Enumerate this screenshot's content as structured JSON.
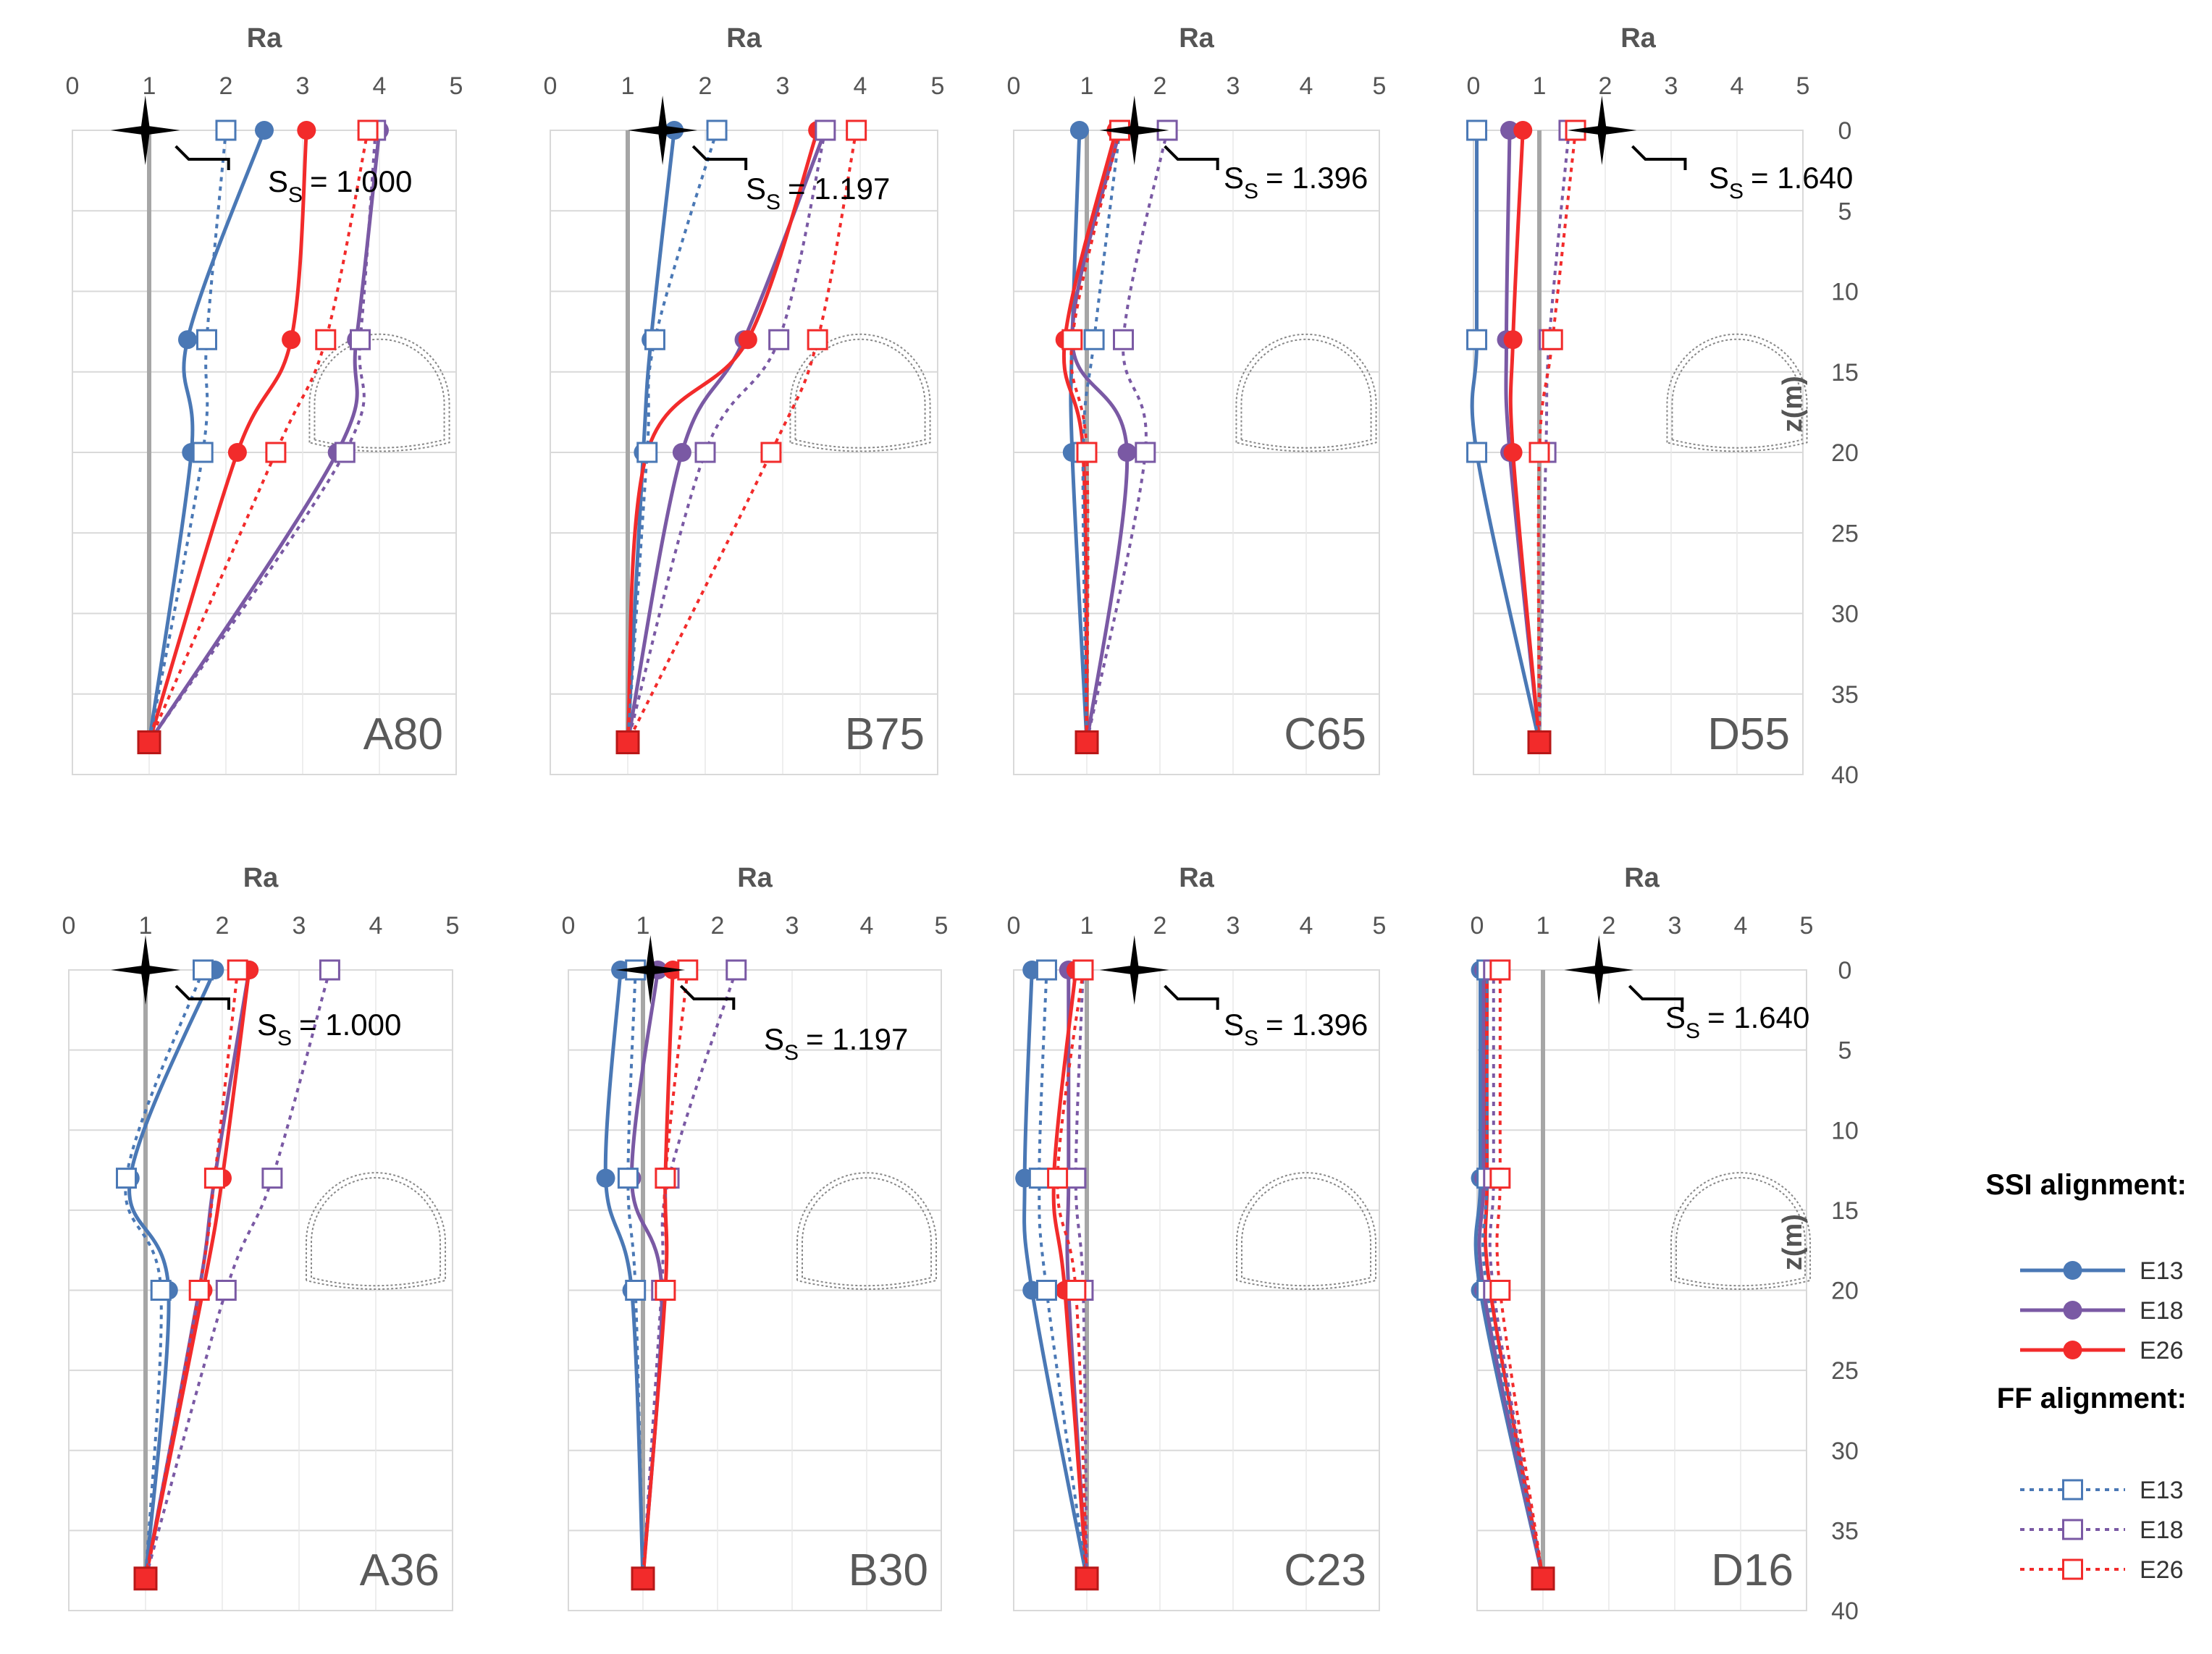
{
  "colors": {
    "E13": "#4a78b5",
    "E18": "#7a59a4",
    "E26": "#f22b2b",
    "reference": "#a6a6a6",
    "grid": "#d9d9d9"
  },
  "chart_data": [
    {
      "type": "line",
      "title": "A80",
      "xlabel": "Ra",
      "ylabel": "z(m)",
      "xlim": [
        0,
        5
      ],
      "ylim": [
        0,
        40
      ],
      "xticks": [
        0,
        1,
        2,
        3,
        4,
        5
      ],
      "yticks": [
        0,
        5,
        10,
        15,
        20,
        25,
        30,
        35,
        40
      ],
      "reference_x": 1,
      "z": [
        0,
        13,
        20,
        38
      ],
      "ss_label": "S",
      "ss_sub": "S",
      "ss_value": "= 1.000",
      "star": {
        "ra": 0.95,
        "z": 0
      },
      "series": [
        {
          "name": "E13",
          "alignment": "SSI",
          "values": [
            2.5,
            1.5,
            1.55,
            1.0
          ]
        },
        {
          "name": "E18",
          "alignment": "SSI",
          "values": [
            4.0,
            3.7,
            3.45,
            1.0
          ]
        },
        {
          "name": "E26",
          "alignment": "SSI",
          "values": [
            3.05,
            2.85,
            2.15,
            1.0
          ]
        },
        {
          "name": "E13",
          "alignment": "FF",
          "values": [
            2.0,
            1.75,
            1.7,
            1.0
          ]
        },
        {
          "name": "E18",
          "alignment": "FF",
          "values": [
            3.95,
            3.75,
            3.55,
            1.0
          ]
        },
        {
          "name": "E26",
          "alignment": "FF",
          "values": [
            3.85,
            3.3,
            2.65,
            1.0
          ]
        }
      ]
    },
    {
      "type": "line",
      "title": "B75",
      "xlabel": "Ra",
      "ylabel": "z(m)",
      "xlim": [
        0,
        5
      ],
      "ylim": [
        0,
        40
      ],
      "xticks": [
        0,
        1,
        2,
        3,
        4,
        5
      ],
      "yticks": [
        0,
        5,
        10,
        15,
        20,
        25,
        30,
        35,
        40
      ],
      "reference_x": 1,
      "z": [
        0,
        13,
        20,
        38
      ],
      "ss_label": "S",
      "ss_sub": "S",
      "ss_value": "= 1.197",
      "star": {
        "ra": 1.45,
        "z": 0
      },
      "series": [
        {
          "name": "E13",
          "alignment": "SSI",
          "values": [
            1.6,
            1.3,
            1.2,
            1.0
          ]
        },
        {
          "name": "E18",
          "alignment": "SSI",
          "values": [
            3.55,
            2.5,
            1.7,
            1.0
          ]
        },
        {
          "name": "E26",
          "alignment": "SSI",
          "values": [
            3.45,
            2.55,
            1.25,
            1.0
          ]
        },
        {
          "name": "E13",
          "alignment": "FF",
          "values": [
            2.15,
            1.35,
            1.25,
            1.0
          ]
        },
        {
          "name": "E18",
          "alignment": "FF",
          "values": [
            3.55,
            2.95,
            2.0,
            1.0
          ]
        },
        {
          "name": "E26",
          "alignment": "FF",
          "values": [
            3.95,
            3.45,
            2.85,
            1.0
          ]
        }
      ]
    },
    {
      "type": "line",
      "title": "C65",
      "xlabel": "Ra",
      "ylabel": "z(m)",
      "xlim": [
        0,
        5
      ],
      "ylim": [
        0,
        40
      ],
      "xticks": [
        0,
        1,
        2,
        3,
        4,
        5
      ],
      "yticks": [
        0,
        5,
        10,
        15,
        20,
        25,
        30,
        35,
        40
      ],
      "reference_x": 1,
      "z": [
        0,
        13,
        20,
        38
      ],
      "ss_label": "S",
      "ss_sub": "S",
      "ss_value": "= 1.396",
      "star": {
        "ra": 1.65,
        "z": 0
      },
      "series": [
        {
          "name": "E13",
          "alignment": "SSI",
          "values": [
            0.9,
            0.8,
            0.8,
            1.0
          ]
        },
        {
          "name": "E18",
          "alignment": "SSI",
          "values": [
            1.45,
            0.8,
            1.55,
            1.0
          ]
        },
        {
          "name": "E26",
          "alignment": "SSI",
          "values": [
            1.4,
            0.7,
            0.95,
            1.0
          ]
        },
        {
          "name": "E13",
          "alignment": "FF",
          "values": [
            1.45,
            1.1,
            0.95,
            1.0
          ]
        },
        {
          "name": "E18",
          "alignment": "FF",
          "values": [
            2.1,
            1.5,
            1.8,
            1.0
          ]
        },
        {
          "name": "E26",
          "alignment": "FF",
          "values": [
            1.45,
            0.8,
            1.0,
            1.0
          ]
        }
      ]
    },
    {
      "type": "line",
      "title": "D55",
      "xlabel": "Ra",
      "ylabel": "z(m)",
      "xlim": [
        0,
        5
      ],
      "ylim": [
        0,
        40
      ],
      "xticks": [
        0,
        1,
        2,
        3,
        4,
        5
      ],
      "yticks": [
        0,
        5,
        10,
        15,
        20,
        25,
        30,
        35,
        40
      ],
      "reference_x": 1,
      "z": [
        0,
        13,
        20,
        38
      ],
      "ss_label": "S",
      "ss_sub": "S",
      "ss_value": "= 1.640",
      "star": {
        "ra": 1.95,
        "z": 0
      },
      "series": [
        {
          "name": "E13",
          "alignment": "SSI",
          "values": [
            0.05,
            0.05,
            0.05,
            1.0
          ]
        },
        {
          "name": "E18",
          "alignment": "SSI",
          "values": [
            0.55,
            0.5,
            0.55,
            1.0
          ]
        },
        {
          "name": "E26",
          "alignment": "SSI",
          "values": [
            0.75,
            0.6,
            0.6,
            1.0
          ]
        },
        {
          "name": "E13",
          "alignment": "FF",
          "values": [
            0.05,
            0.05,
            0.05,
            1.0
          ]
        },
        {
          "name": "E18",
          "alignment": "FF",
          "values": [
            1.45,
            1.15,
            1.1,
            1.0
          ]
        },
        {
          "name": "E26",
          "alignment": "FF",
          "values": [
            1.55,
            1.2,
            1.0,
            1.0
          ]
        }
      ]
    },
    {
      "type": "line",
      "title": "A36",
      "xlabel": "Ra",
      "ylabel": "z(m)",
      "xlim": [
        0,
        5
      ],
      "ylim": [
        0,
        40
      ],
      "xticks": [
        0,
        1,
        2,
        3,
        4,
        5
      ],
      "yticks": [
        0,
        5,
        10,
        15,
        20,
        25,
        30,
        35,
        40
      ],
      "reference_x": 1,
      "z": [
        0,
        13,
        20,
        38
      ],
      "ss_label": "S",
      "ss_sub": "S",
      "ss_value": "= 1.000",
      "star": {
        "ra": 1.0,
        "z": 0
      },
      "series": [
        {
          "name": "E13",
          "alignment": "SSI",
          "values": [
            1.9,
            0.8,
            1.3,
            1.0
          ]
        },
        {
          "name": "E18",
          "alignment": "SSI",
          "values": [
            2.35,
            1.9,
            1.7,
            1.0
          ]
        },
        {
          "name": "E26",
          "alignment": "SSI",
          "values": [
            2.35,
            2.0,
            1.75,
            1.0
          ]
        },
        {
          "name": "E13",
          "alignment": "FF",
          "values": [
            1.75,
            0.75,
            1.2,
            1.0
          ]
        },
        {
          "name": "E18",
          "alignment": "FF",
          "values": [
            3.4,
            2.65,
            2.05,
            1.0
          ]
        },
        {
          "name": "E26",
          "alignment": "FF",
          "values": [
            2.2,
            1.9,
            1.7,
            1.0
          ]
        }
      ]
    },
    {
      "type": "line",
      "title": "B30",
      "xlabel": "Ra",
      "ylabel": "z(m)",
      "xlim": [
        0,
        5
      ],
      "ylim": [
        0,
        40
      ],
      "xticks": [
        0,
        1,
        2,
        3,
        4,
        5
      ],
      "yticks": [
        0,
        5,
        10,
        15,
        20,
        25,
        30,
        35,
        40
      ],
      "reference_x": 1,
      "z": [
        0,
        13,
        20,
        38
      ],
      "ss_label": "S",
      "ss_sub": "S",
      "ss_value": "= 1.197",
      "star": {
        "ra": 1.1,
        "z": 0
      },
      "series": [
        {
          "name": "E13",
          "alignment": "SSI",
          "values": [
            0.7,
            0.5,
            0.85,
            1.0
          ]
        },
        {
          "name": "E18",
          "alignment": "SSI",
          "values": [
            1.2,
            0.85,
            1.25,
            1.0
          ]
        },
        {
          "name": "E26",
          "alignment": "SSI",
          "values": [
            1.4,
            1.3,
            1.3,
            1.0
          ]
        },
        {
          "name": "E13",
          "alignment": "FF",
          "values": [
            0.9,
            0.8,
            0.9,
            1.0
          ]
        },
        {
          "name": "E18",
          "alignment": "FF",
          "values": [
            2.25,
            1.35,
            1.25,
            1.0
          ]
        },
        {
          "name": "E26",
          "alignment": "FF",
          "values": [
            1.6,
            1.3,
            1.3,
            1.0
          ]
        }
      ]
    },
    {
      "type": "line",
      "title": "C23",
      "xlabel": "Ra",
      "ylabel": "z(m)",
      "xlim": [
        0,
        5
      ],
      "ylim": [
        0,
        40
      ],
      "xticks": [
        0,
        1,
        2,
        3,
        4,
        5
      ],
      "yticks": [
        0,
        5,
        10,
        15,
        20,
        25,
        30,
        35,
        40
      ],
      "reference_x": 1,
      "z": [
        0,
        13,
        20,
        38
      ],
      "ss_label": "S",
      "ss_sub": "S",
      "ss_value": "= 1.396",
      "star": {
        "ra": 1.65,
        "z": 0
      },
      "series": [
        {
          "name": "E13",
          "alignment": "SSI",
          "values": [
            0.25,
            0.15,
            0.25,
            1.0
          ]
        },
        {
          "name": "E18",
          "alignment": "SSI",
          "values": [
            0.75,
            0.75,
            0.75,
            1.0
          ]
        },
        {
          "name": "E26",
          "alignment": "SSI",
          "values": [
            0.85,
            0.55,
            0.7,
            1.0
          ]
        },
        {
          "name": "E13",
          "alignment": "FF",
          "values": [
            0.45,
            0.35,
            0.45,
            1.0
          ]
        },
        {
          "name": "E18",
          "alignment": "FF",
          "values": [
            0.95,
            0.85,
            0.95,
            1.0
          ]
        },
        {
          "name": "E26",
          "alignment": "FF",
          "values": [
            0.95,
            0.6,
            0.85,
            1.0
          ]
        }
      ]
    },
    {
      "type": "line",
      "title": "D16",
      "xlabel": "Ra",
      "ylabel": "z(m)",
      "xlim": [
        0,
        5
      ],
      "ylim": [
        0,
        40
      ],
      "xticks": [
        0,
        1,
        2,
        3,
        4,
        5
      ],
      "yticks": [
        0,
        5,
        10,
        15,
        20,
        25,
        30,
        35,
        40
      ],
      "reference_x": 1,
      "z": [
        0,
        13,
        20,
        38
      ],
      "ss_label": "S",
      "ss_sub": "S",
      "ss_value": "= 1.640",
      "star": {
        "ra": 1.85,
        "z": 0
      },
      "series": [
        {
          "name": "E13",
          "alignment": "SSI",
          "values": [
            0.05,
            0.05,
            0.05,
            1.0
          ]
        },
        {
          "name": "E18",
          "alignment": "SSI",
          "values": [
            0.1,
            0.1,
            0.1,
            1.0
          ]
        },
        {
          "name": "E26",
          "alignment": "SSI",
          "values": [
            0.15,
            0.15,
            0.2,
            1.0
          ]
        },
        {
          "name": "E13",
          "alignment": "FF",
          "values": [
            0.15,
            0.15,
            0.15,
            1.0
          ]
        },
        {
          "name": "E18",
          "alignment": "FF",
          "values": [
            0.25,
            0.25,
            0.25,
            1.0
          ]
        },
        {
          "name": "E26",
          "alignment": "FF",
          "values": [
            0.35,
            0.35,
            0.35,
            1.0
          ]
        }
      ]
    }
  ],
  "legend": {
    "ssi_title": "SSI alignment:",
    "ff_title": "FF alignment:",
    "ssi_items": [
      {
        "label": "E13",
        "color": "#4a78b5"
      },
      {
        "label": "E18",
        "color": "#7a59a4"
      },
      {
        "label": "E26",
        "color": "#f22b2b"
      }
    ],
    "ff_items": [
      {
        "label": "E13",
        "color": "#4a78b5"
      },
      {
        "label": "E18",
        "color": "#7a59a4"
      },
      {
        "label": "E26",
        "color": "#f22b2b"
      }
    ]
  }
}
